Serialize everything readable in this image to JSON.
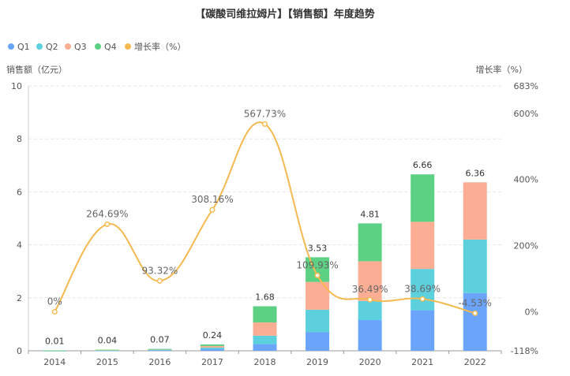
{
  "chart_data": {
    "type": "bar",
    "title": "【碳酸司维拉姆片】【销售额】年度趋势",
    "legend_position": "top-left",
    "legend": [
      {
        "label": "Q1",
        "color": "#6AA5FB"
      },
      {
        "label": "Q2",
        "color": "#5CD0DD"
      },
      {
        "label": "Q3",
        "color": "#FBAE94"
      },
      {
        "label": "Q4",
        "color": "#5DD183"
      },
      {
        "label": "增长率（%）",
        "color": "#F4B951"
      }
    ],
    "categories": [
      "2014",
      "2015",
      "2016",
      "2017",
      "2018",
      "2019",
      "2020",
      "2021",
      "2022"
    ],
    "y_left": {
      "label": "销售额（亿元）",
      "min": 0,
      "max": 10,
      "ticks": [
        "0",
        "2",
        "4",
        "6",
        "8",
        "10"
      ]
    },
    "y_right": {
      "label": "增长率（%）",
      "min": -118,
      "max": 683,
      "ticks": [
        "683%",
        "600%",
        "400%",
        "200%",
        "0%",
        "-118%"
      ],
      "tick_values": [
        683,
        600,
        400,
        200,
        0,
        -118
      ]
    },
    "series": [
      {
        "name": "Q1",
        "color": "#6AA5FB",
        "values": [
          0.0025,
          0.01,
          0.02,
          0.06,
          0.25,
          0.7,
          1.16,
          1.53,
          2.18
        ]
      },
      {
        "name": "Q2",
        "color": "#5CD0DD",
        "values": [
          0.0025,
          0.01,
          0.02,
          0.06,
          0.32,
          0.85,
          0.72,
          1.56,
          2.02
        ]
      },
      {
        "name": "Q3",
        "color": "#FBAE94",
        "values": [
          0.0025,
          0.01,
          0.02,
          0.06,
          0.5,
          1.05,
          1.5,
          1.78,
          2.16
        ]
      },
      {
        "name": "Q4",
        "color": "#5DD183",
        "values": [
          0.0025,
          0.01,
          0.01,
          0.06,
          0.61,
          0.93,
          1.43,
          1.79,
          0
        ]
      }
    ],
    "totals": [
      0.01,
      0.04,
      0.07,
      0.24,
      1.68,
      3.53,
      4.81,
      6.66,
      6.36
    ],
    "total_labels": [
      "0.01",
      "0.04",
      "0.07",
      "0.24",
      "1.68",
      "3.53",
      "4.81",
      "6.66",
      "6.36"
    ],
    "growth": {
      "name": "增长率（%）",
      "color": "#F4B951",
      "values": [
        0,
        264.69,
        93.32,
        308.16,
        567.73,
        109.93,
        36.49,
        38.69,
        -4.53
      ],
      "labels": [
        "0%",
        "264.69%",
        "93.32%",
        "308.16%",
        "567.73%",
        "109.93%",
        "36.49%",
        "38.69%",
        "-4.53%"
      ]
    },
    "grid": true
  }
}
